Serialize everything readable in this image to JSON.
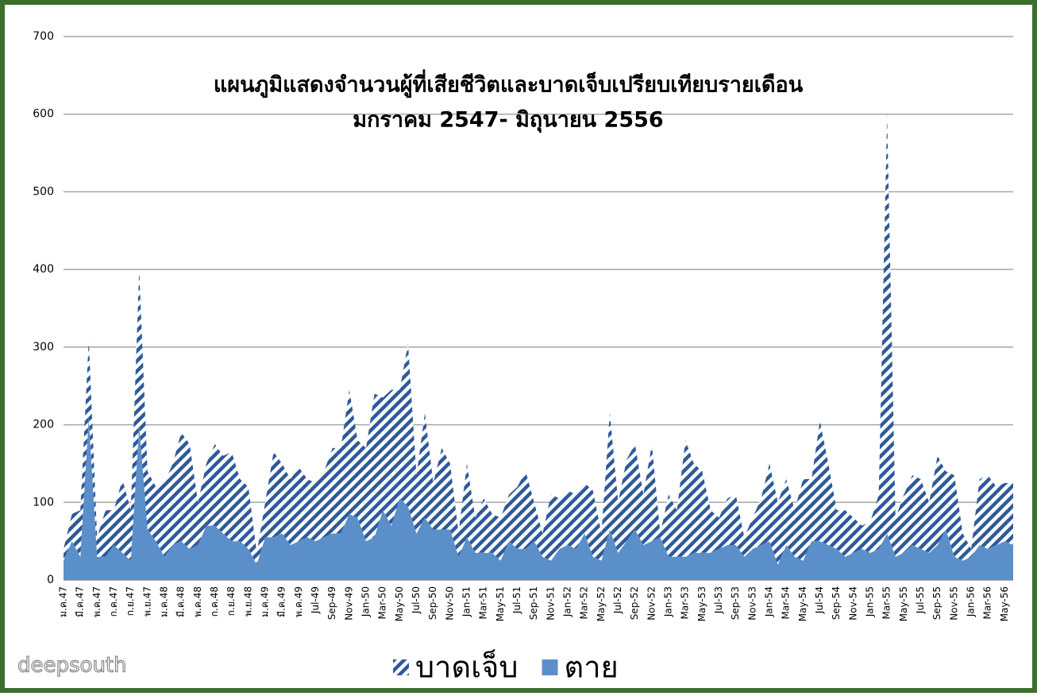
{
  "chart_data": {
    "type": "stacked_area",
    "title": "แผนภูมิแสดงจำนวนผู้ที่เสียชีวิตและบาดเจ็บเปรียบเทียบรายเดือน",
    "subtitle": "มกราคม 2547- มิถุนายน 2556",
    "watermark": "deepsouth",
    "categories": [
      "ม.ค.47",
      null,
      "มี.ค.47",
      null,
      "พ.ค.47",
      null,
      "ก.ค.47",
      null,
      "ก.ย.47",
      null,
      "พ.ย.47",
      null,
      "ม.ค.48",
      null,
      "มี.ค.48",
      null,
      "พ.ค.48",
      null,
      "ก.ค.48",
      null,
      "ก.ย.48",
      null,
      "พ.ย.48",
      null,
      "ม.ค.49",
      null,
      "มี.ค.49",
      null,
      "พ.ค.49",
      null,
      "Jul-49",
      null,
      "Sep-49",
      null,
      "Nov-49",
      null,
      "Jan-50",
      null,
      "Mar-50",
      null,
      "May-50",
      null,
      "Jul-50",
      null,
      "Sep-50",
      null,
      "Nov-50",
      null,
      "Jan-51",
      null,
      "Mar-51",
      null,
      "May-51",
      null,
      "Jul-51",
      null,
      "Sep-51",
      null,
      "Nov-51",
      null,
      "Jan-52",
      null,
      "Mar-52",
      null,
      "May-52",
      null,
      "Jul-52",
      null,
      "Sep-52",
      null,
      "Nov-52",
      null,
      "Jan-53",
      null,
      "Mar-53",
      null,
      "May-53",
      null,
      "Jul-53",
      null,
      "Sep-53",
      null,
      "Nov-53",
      null,
      "Jan-54",
      null,
      "Mar-54",
      null,
      "May-54",
      null,
      "Jul-54",
      null,
      "Sep-54",
      null,
      "Nov-54",
      null,
      "Jan-55",
      null,
      "Mar-55",
      null,
      "May-55",
      null,
      "Jul-55",
      null,
      "Sep-55",
      null,
      "Nov-55",
      null,
      "Jan-56",
      null,
      "Mar-56",
      null,
      "May-56",
      null
    ],
    "series": [
      {
        "name": "ตาย",
        "color": "#5b8fc9",
        "values": [
          25,
          50,
          30,
          210,
          30,
          30,
          45,
          35,
          25,
          200,
          65,
          50,
          30,
          45,
          50,
          40,
          45,
          70,
          70,
          60,
          50,
          50,
          40,
          20,
          55,
          55,
          60,
          45,
          50,
          55,
          50,
          55,
          60,
          60,
          85,
          80,
          50,
          55,
          90,
          70,
          105,
          95,
          60,
          80,
          65,
          65,
          65,
          30,
          55,
          35,
          35,
          35,
          25,
          50,
          40,
          40,
          50,
          30,
          25,
          40,
          45,
          40,
          60,
          30,
          25,
          65,
          35,
          50,
          65,
          45,
          50,
          55,
          30,
          30,
          30,
          35,
          35,
          35,
          40,
          45,
          45,
          30,
          40,
          45,
          50,
          20,
          45,
          30,
          25,
          50,
          50,
          45,
          40,
          30,
          35,
          40,
          35,
          40,
          60,
          30,
          35,
          45,
          40,
          35,
          45,
          65,
          30,
          25,
          30,
          45,
          40,
          45,
          50,
          45
        ]
      },
      {
        "name": "บาดเจ็บ",
        "color": "#2e5a9a",
        "pattern": "hatch",
        "values": [
          15,
          35,
          60,
          100,
          25,
          60,
          45,
          95,
          65,
          200,
          75,
          70,
          95,
          105,
          140,
          135,
          55,
          80,
          105,
          100,
          115,
          80,
          80,
          15,
          45,
          110,
          90,
          85,
          95,
          75,
          75,
          85,
          110,
          110,
          160,
          100,
          120,
          185,
          145,
          175,
          140,
          210,
          75,
          135,
          60,
          105,
          85,
          30,
          95,
          45,
          70,
          50,
          55,
          60,
          80,
          100,
          50,
          30,
          85,
          65,
          70,
          70,
          65,
          85,
          35,
          150,
          65,
          105,
          110,
          65,
          125,
          5,
          80,
          60,
          150,
          115,
          105,
          55,
          40,
          60,
          65,
          25,
          40,
          60,
          100,
          80,
          85,
          60,
          105,
          80,
          155,
          105,
          50,
          60,
          45,
          30,
          40,
          70,
          540,
          50,
          75,
          90,
          90,
          65,
          115,
          75,
          105,
          35,
          10,
          85,
          95,
          75,
          75,
          80
        ]
      }
    ],
    "ylim": [
      0,
      700
    ],
    "yticks": [
      0,
      100,
      200,
      300,
      400,
      500,
      600,
      700
    ],
    "grid": true
  }
}
